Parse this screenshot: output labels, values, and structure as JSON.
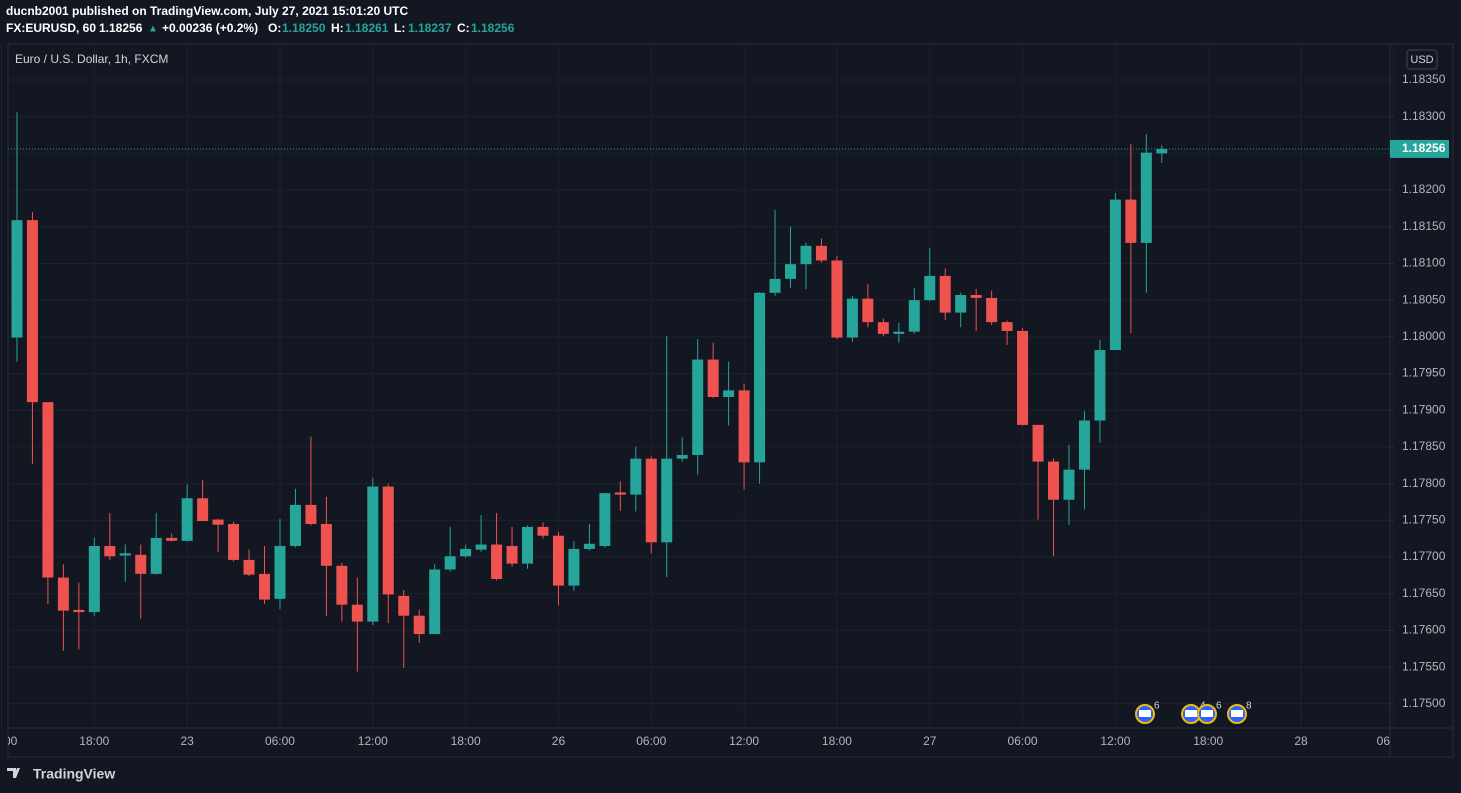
{
  "header": {
    "publisher": "ducnb2001 published on TradingView.com, July 27, 2021 15:01:20 UTC",
    "symbol": "FX:EURUSD, 60",
    "price": "1.18256",
    "arrow": "▲",
    "change": "+0.00236 (+0.2%)",
    "ohlc": [
      {
        "key": "O:",
        "value": "1.18250"
      },
      {
        "key": "H:",
        "value": "1.18261"
      },
      {
        "key": "L:",
        "value": "1.18237"
      },
      {
        "key": "C:",
        "value": "1.18256"
      }
    ]
  },
  "chart_data": {
    "type": "candlestick",
    "title": "Euro / U.S. Dollar, 1h, FXCM",
    "currency": "USD",
    "up_color": "#26a69a",
    "down_color": "#ef5350",
    "grid": true,
    "series": [
      {
        "open": [
          1.17999,
          1.18159,
          1.17911,
          1.17672,
          1.17628,
          1.17625,
          1.17715,
          1.17702,
          1.17703,
          1.17677,
          1.17726,
          1.17722,
          1.1778,
          1.17751,
          1.17745,
          1.17696,
          1.17677,
          1.17643,
          1.17715,
          1.17771,
          1.17745,
          1.17688,
          1.17635,
          1.17612,
          1.17796,
          1.17647,
          1.1762,
          1.17595,
          1.17683,
          1.17701,
          1.1771,
          1.17717,
          1.17715,
          1.17691,
          1.17741,
          1.17729,
          1.17661,
          1.17711,
          1.17715,
          1.17788,
          1.17785,
          1.17834,
          1.1772,
          1.17834,
          1.17839,
          1.17969,
          1.17918,
          1.17927,
          1.17829,
          1.1806,
          1.18079,
          1.18099,
          1.18124,
          1.18104,
          1.17999,
          1.18052,
          1.1802,
          1.18004,
          1.18007,
          1.1805,
          1.18083,
          1.18033,
          1.18057,
          1.18053,
          1.1802,
          1.18008,
          1.1788,
          1.1783,
          1.17778,
          1.17819,
          1.17886,
          1.17982,
          1.18187,
          1.18128,
          1.1825
        ],
        "high": [
          1.18306,
          1.1817,
          1.17911,
          1.1769,
          1.17665,
          1.17726,
          1.1776,
          1.17717,
          1.17717,
          1.1776,
          1.17732,
          1.17799,
          1.17805,
          1.17752,
          1.17748,
          1.1771,
          1.17715,
          1.17752,
          1.17793,
          1.17864,
          1.17782,
          1.17692,
          1.17672,
          1.17808,
          1.178,
          1.17655,
          1.17628,
          1.1769,
          1.17741,
          1.17717,
          1.17757,
          1.1776,
          1.17741,
          1.17743,
          1.17747,
          1.17734,
          1.17722,
          1.17745,
          1.17787,
          1.17803,
          1.1785,
          1.17837,
          1.18001,
          1.17863,
          1.17997,
          1.17992,
          1.17966,
          1.17936,
          1.18061,
          1.18173,
          1.1815,
          1.18128,
          1.18134,
          1.1811,
          1.18056,
          1.18072,
          1.18025,
          1.18019,
          1.18067,
          1.18121,
          1.18093,
          1.1806,
          1.18065,
          1.18063,
          1.18022,
          1.18012,
          1.1788,
          1.17834,
          1.17853,
          1.17899,
          1.17996,
          1.18196,
          1.18263,
          1.18276,
          1.18261
        ],
        "low": [
          1.17966,
          1.17827,
          1.17636,
          1.17572,
          1.17574,
          1.1762,
          1.17696,
          1.17666,
          1.17616,
          1.17676,
          1.17721,
          1.17721,
          1.17749,
          1.17707,
          1.17694,
          1.17674,
          1.17636,
          1.17629,
          1.17713,
          1.17743,
          1.1762,
          1.17612,
          1.17544,
          1.17607,
          1.1761,
          1.17549,
          1.17583,
          1.17595,
          1.1768,
          1.17699,
          1.17707,
          1.17668,
          1.17687,
          1.17684,
          1.17725,
          1.17634,
          1.17654,
          1.17709,
          1.17713,
          1.17763,
          1.17762,
          1.17705,
          1.17673,
          1.1783,
          1.17812,
          1.17917,
          1.17879,
          1.17792,
          1.178,
          1.18056,
          1.18067,
          1.18065,
          1.18101,
          1.17997,
          1.17993,
          1.18013,
          1.18001,
          1.17992,
          1.18004,
          1.18049,
          1.18023,
          1.18013,
          1.18008,
          1.18016,
          1.17989,
          1.17879,
          1.17751,
          1.17701,
          1.17744,
          1.17765,
          1.17856,
          1.17982,
          1.18005,
          1.1806,
          1.18237
        ],
        "close": [
          1.18159,
          1.17911,
          1.17672,
          1.17627,
          1.17625,
          1.17715,
          1.17701,
          1.17705,
          1.17677,
          1.17726,
          1.17722,
          1.1778,
          1.17749,
          1.17744,
          1.17696,
          1.17676,
          1.17642,
          1.17715,
          1.17771,
          1.17745,
          1.17688,
          1.17635,
          1.17612,
          1.17796,
          1.17649,
          1.1762,
          1.17595,
          1.17683,
          1.17701,
          1.17711,
          1.17717,
          1.1767,
          1.17691,
          1.17741,
          1.17729,
          1.17661,
          1.17711,
          1.17718,
          1.17787,
          1.17785,
          1.17834,
          1.1772,
          1.17834,
          1.17839,
          1.17969,
          1.17918,
          1.17927,
          1.17829,
          1.1806,
          1.18079,
          1.18099,
          1.18124,
          1.18104,
          1.17999,
          1.18052,
          1.1802,
          1.18004,
          1.18007,
          1.1805,
          1.18083,
          1.18033,
          1.18057,
          1.18053,
          1.1802,
          1.18008,
          1.1788,
          1.1783,
          1.17778,
          1.17819,
          1.17886,
          1.17982,
          1.18187,
          1.18128,
          1.18251,
          1.18256
        ]
      }
    ],
    "xlim": [
      -0.58,
      88.75
    ],
    "xticks": [
      {
        "value": -1,
        "label": "00"
      },
      {
        "value": 5,
        "label": "18:00"
      },
      {
        "value": 11,
        "label": "23"
      },
      {
        "value": 17,
        "label": "06:00"
      },
      {
        "value": 23,
        "label": "12:00"
      },
      {
        "value": 29,
        "label": "18:00"
      },
      {
        "value": 35,
        "label": "26"
      },
      {
        "value": 41,
        "label": "06:00"
      },
      {
        "value": 47,
        "label": "12:00"
      },
      {
        "value": 53,
        "label": "18:00"
      },
      {
        "value": 59,
        "label": "27"
      },
      {
        "value": 65,
        "label": "06:00"
      },
      {
        "value": 71,
        "label": "12:00"
      },
      {
        "value": 77,
        "label": "18:00"
      },
      {
        "value": 83,
        "label": "28"
      },
      {
        "value": 89,
        "label": "06"
      }
    ],
    "ylim": [
      1.17467,
      1.18399
    ],
    "yticks": [
      {
        "value": 1.175,
        "label": "1.17500"
      },
      {
        "value": 1.1755,
        "label": "1.17550"
      },
      {
        "value": 1.176,
        "label": "1.17600"
      },
      {
        "value": 1.1765,
        "label": "1.17650"
      },
      {
        "value": 1.177,
        "label": "1.17700"
      },
      {
        "value": 1.1775,
        "label": "1.17750"
      },
      {
        "value": 1.178,
        "label": "1.17800"
      },
      {
        "value": 1.1785,
        "label": "1.17850"
      },
      {
        "value": 1.179,
        "label": "1.17900"
      },
      {
        "value": 1.1795,
        "label": "1.17950"
      },
      {
        "value": 1.18,
        "label": "1.18000"
      },
      {
        "value": 1.1805,
        "label": "1.18050"
      },
      {
        "value": 1.181,
        "label": "1.18100"
      },
      {
        "value": 1.1815,
        "label": "1.18150"
      },
      {
        "value": 1.182,
        "label": "1.18200"
      },
      {
        "value": 1.1825,
        "label": "1.18250"
      },
      {
        "value": 1.183,
        "label": "1.18300"
      },
      {
        "value": 1.1835,
        "label": "1.18350"
      }
    ],
    "events": [
      "6",
      "4",
      "6",
      "8"
    ]
  },
  "footer": {
    "brand": "TradingView"
  }
}
